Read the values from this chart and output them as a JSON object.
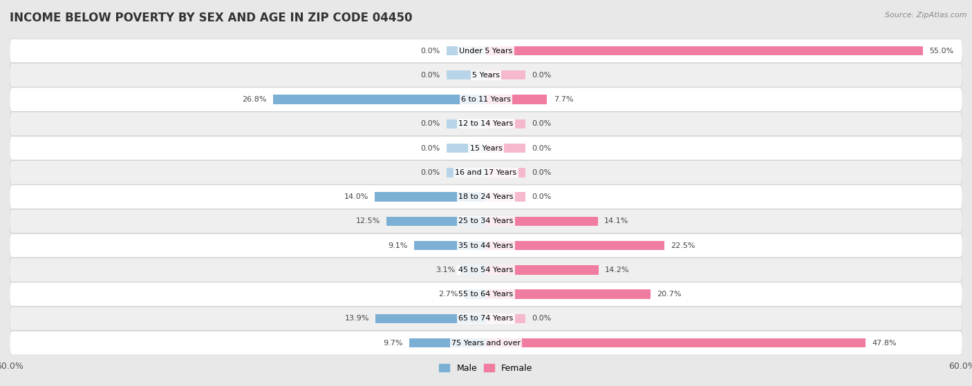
{
  "title": "INCOME BELOW POVERTY BY SEX AND AGE IN ZIP CODE 04450",
  "source": "Source: ZipAtlas.com",
  "categories": [
    "Under 5 Years",
    "5 Years",
    "6 to 11 Years",
    "12 to 14 Years",
    "15 Years",
    "16 and 17 Years",
    "18 to 24 Years",
    "25 to 34 Years",
    "35 to 44 Years",
    "45 to 54 Years",
    "55 to 64 Years",
    "65 to 74 Years",
    "75 Years and over"
  ],
  "male": [
    0.0,
    0.0,
    26.8,
    0.0,
    0.0,
    0.0,
    14.0,
    12.5,
    9.1,
    3.1,
    2.7,
    13.9,
    9.7
  ],
  "female": [
    55.0,
    0.0,
    7.7,
    0.0,
    0.0,
    0.0,
    0.0,
    14.1,
    22.5,
    14.2,
    20.7,
    0.0,
    47.8
  ],
  "male_color": "#7bafd4",
  "female_color": "#f07ca0",
  "male_color_light": "#b8d4e8",
  "female_color_light": "#f5b8cc",
  "male_label": "Male",
  "female_label": "Female",
  "xlim": 60.0,
  "bar_height": 0.38,
  "stub_value": 5.0,
  "background_color": "#e8e8e8",
  "row_bg_color": "#ffffff",
  "row_alt_bg_color": "#efefef",
  "title_fontsize": 12,
  "source_fontsize": 8,
  "label_fontsize": 8,
  "tick_fontsize": 9,
  "category_fontsize": 8
}
